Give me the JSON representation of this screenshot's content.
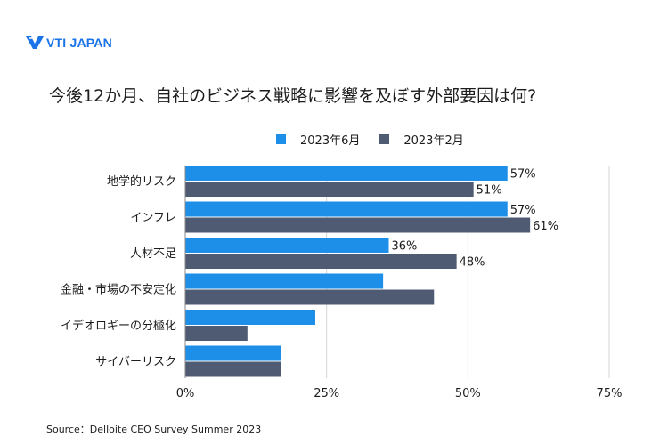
{
  "logo": {
    "text": "VTI JAPAN"
  },
  "colors": {
    "series_june": "#1d8fe8",
    "series_feb": "#4f5b72",
    "grid": "#d4d4d4"
  },
  "chart_data": {
    "type": "bar",
    "orientation": "horizontal",
    "title": "今後12か月、自社のビジネス戦略に影響を及ぼす外部要因は何?",
    "categories": [
      "地学的リスク",
      "インフレ",
      "人材不足",
      "金融・市場の不安定化",
      "イデオロギーの分極化",
      "サイバーリスク"
    ],
    "series": [
      {
        "name": "2023年6月",
        "values": [
          57,
          57,
          36,
          35,
          23,
          17
        ],
        "labels": [
          "57%",
          "57%",
          "36%",
          "",
          "",
          ""
        ]
      },
      {
        "name": "2023年2月",
        "values": [
          51,
          61,
          48,
          44,
          11,
          17
        ],
        "labels": [
          "51%",
          "61%",
          "48%",
          "",
          "",
          ""
        ]
      }
    ],
    "x_ticks": [
      "0%",
      "25%",
      "50%",
      "75%"
    ],
    "xlim": [
      0,
      75
    ],
    "grid": true,
    "legend": "top"
  },
  "source": "Source：Delloite CEO Survey Summer 2023"
}
